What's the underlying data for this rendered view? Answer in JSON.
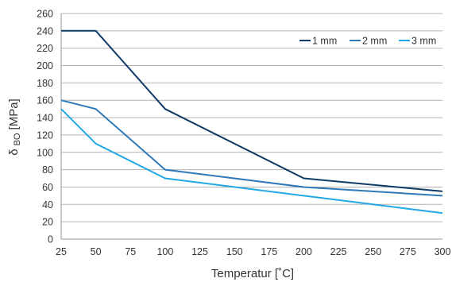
{
  "chart_data": {
    "type": "line",
    "xlabel": "Temperatur [˚C]",
    "ylabel": {
      "main": "δ",
      "sub": "BO",
      "unit": "[MPa]"
    },
    "x": [
      25,
      50,
      100,
      200,
      300
    ],
    "x_ticks": [
      "25",
      "50",
      "75",
      "100",
      "125",
      "150",
      "175",
      "200",
      "225",
      "250",
      "275",
      "300"
    ],
    "y_ticks": [
      "0",
      "20",
      "40",
      "60",
      "80",
      "100",
      "120",
      "140",
      "160",
      "180",
      "200",
      "220",
      "240",
      "260"
    ],
    "xlim": [
      25,
      300
    ],
    "ylim": [
      0,
      260
    ],
    "grid": "horizontal",
    "legend_position": "top-right",
    "series": [
      {
        "name": "1 mm",
        "color": "#0d3a66",
        "values": [
          240,
          240,
          150,
          70,
          55
        ]
      },
      {
        "name": "2 mm",
        "color": "#2e78b8",
        "values": [
          160,
          150,
          80,
          60,
          50
        ]
      },
      {
        "name": "3 mm",
        "color": "#1fa8e6",
        "values": [
          150,
          110,
          70,
          50,
          30
        ]
      }
    ]
  }
}
